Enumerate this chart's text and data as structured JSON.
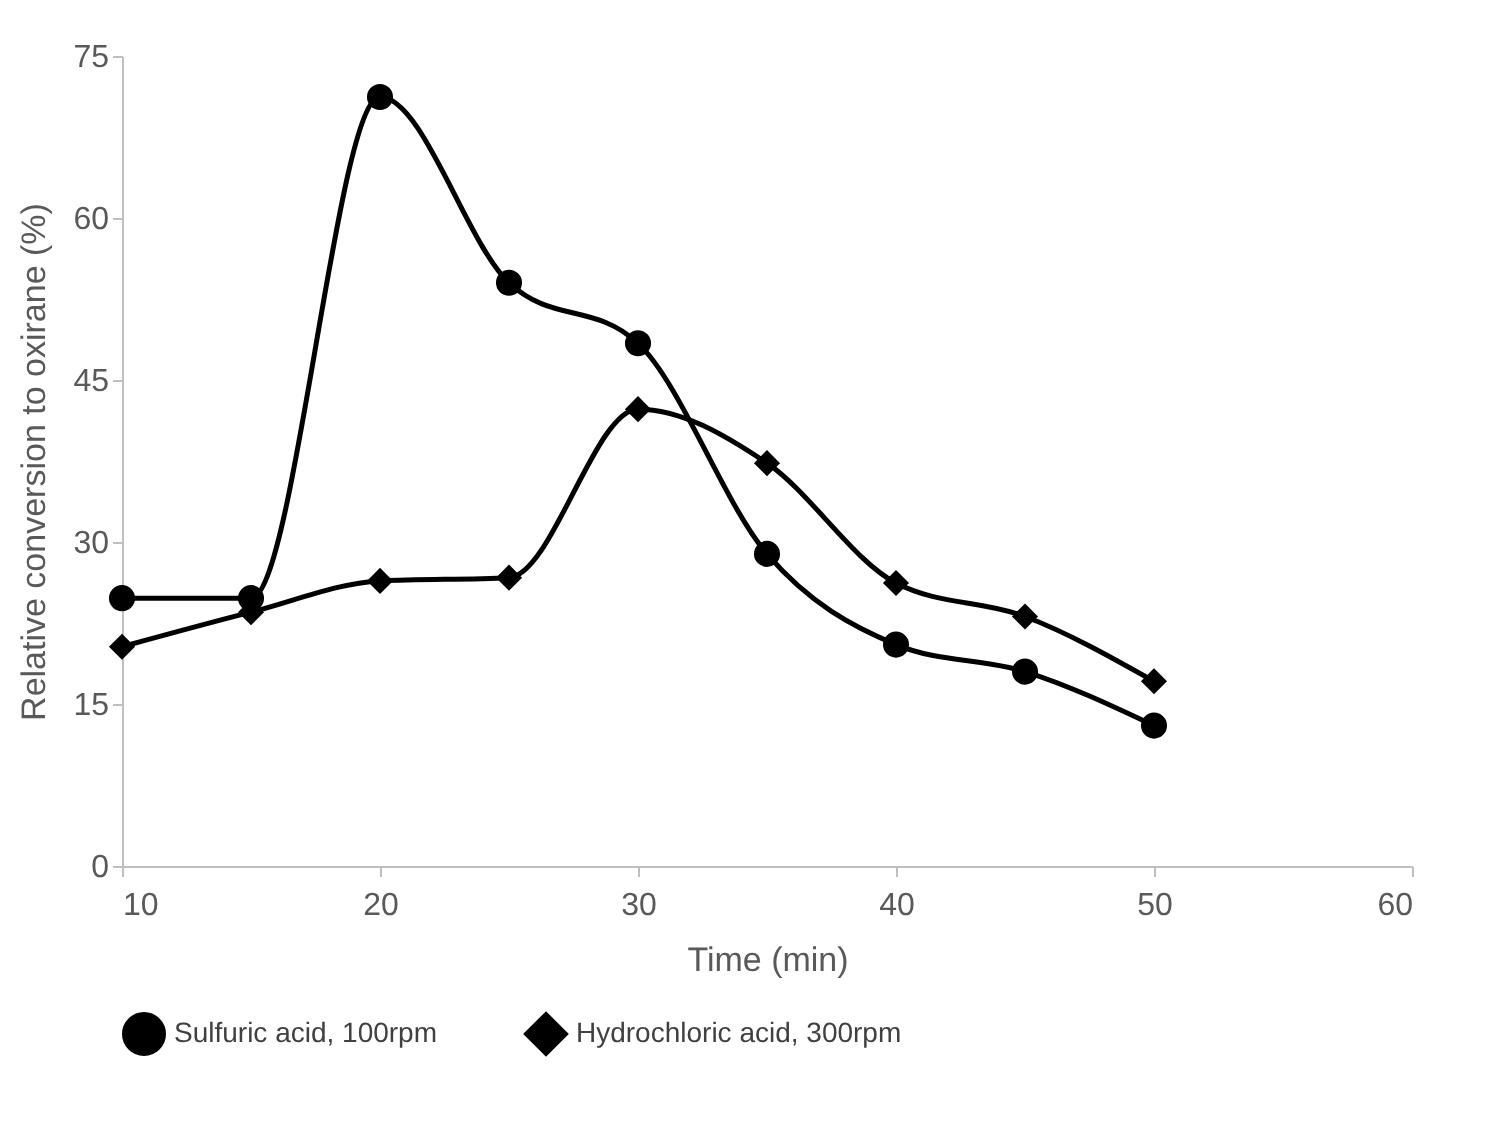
{
  "chart_data": {
    "type": "line",
    "xlabel": "Time (min)",
    "ylabel": "Relative conversion to oxirane (%)",
    "x": [
      10,
      15,
      20,
      25,
      30,
      35,
      40,
      45,
      50
    ],
    "series": [
      {
        "name": "Sulfuric acid, 100rpm",
        "color": "#000000",
        "marker": "circle",
        "values": [
          24.8,
          24.8,
          71.2,
          54.0,
          48.4,
          28.9,
          20.5,
          18.0,
          13.0
        ]
      },
      {
        "name": "Hydrochloric acid, 300rpm",
        "color": "#000000",
        "marker": "diamond",
        "values": [
          20.3,
          23.5,
          26.4,
          26.7,
          42.3,
          37.3,
          26.2,
          23.1,
          17.1
        ]
      }
    ],
    "xlim": [
      10,
      60
    ],
    "xticks": [
      10,
      20,
      30,
      40,
      50,
      60
    ],
    "ylim": [
      0,
      75
    ],
    "yticks": [
      0,
      15,
      30,
      45,
      60,
      75
    ],
    "grid": false,
    "legend": "bottom",
    "line_style": "solid"
  }
}
